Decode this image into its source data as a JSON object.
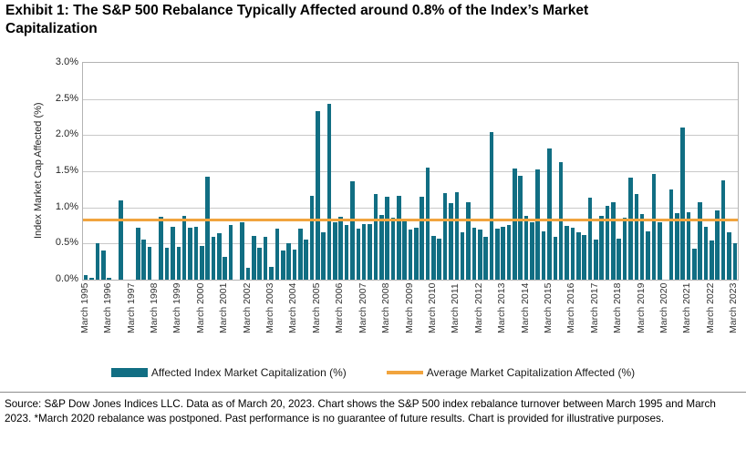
{
  "title": "Exhibit 1: The S&P 500 Rebalance Typically Affected around 0.8% of the Index’s Market Capitalization",
  "chart_data": {
    "type": "bar",
    "title": "Exhibit 1: The S&P 500 Rebalance Typically Affected around 0.8% of the Index’s Market Capitalization",
    "ylabel": "Index Market Cap Affected (%)",
    "ylim": [
      0,
      3.0
    ],
    "ytick_step": 0.5,
    "ytick_labels": [
      "0.0%",
      "0.5%",
      "1.0%",
      "1.5%",
      "2.0%",
      "2.5%",
      "3.0%"
    ],
    "grid": true,
    "legend_position": "bottom",
    "x_frequency": "quarterly",
    "x_range": [
      "March 1995",
      "March 2023"
    ],
    "x_tick_labels": [
      "March 1995",
      "March 1996",
      "March 1997",
      "March 1998",
      "March 1999",
      "March 2000",
      "March 2001",
      "March 2002",
      "March 2003",
      "March 2004",
      "March 2005",
      "March 2006",
      "March 2007",
      "March 2008",
      "March 2009",
      "March 2010",
      "March 2011",
      "March 2012",
      "March 2013",
      "March 2014",
      "March 2015",
      "March 2016",
      "March 2017",
      "March 2018",
      "March 2019",
      "March 2020",
      "March 2021",
      "March 2022",
      "March 2023"
    ],
    "x_ticks_every_n_bars": 4,
    "values": [
      0.06,
      0.03,
      0.5,
      0.4,
      0.03,
      0.0,
      1.1,
      0.0,
      0.0,
      0.72,
      0.55,
      0.45,
      0.0,
      0.87,
      0.44,
      0.73,
      0.46,
      0.88,
      0.72,
      0.73,
      0.47,
      1.43,
      0.59,
      0.64,
      0.31,
      0.76,
      0.0,
      0.8,
      0.16,
      0.61,
      0.44,
      0.59,
      0.18,
      0.71,
      0.4,
      0.51,
      0.41,
      0.7,
      0.56,
      1.16,
      2.33,
      0.65,
      2.43,
      0.79,
      0.87,
      0.76,
      1.36,
      0.71,
      0.77,
      0.77,
      1.19,
      0.89,
      1.15,
      0.86,
      1.16,
      0.85,
      0.69,
      0.72,
      1.15,
      1.55,
      0.61,
      0.57,
      1.2,
      1.06,
      1.21,
      0.65,
      1.07,
      0.72,
      0.69,
      0.59,
      2.04,
      0.7,
      0.73,
      0.76,
      1.54,
      1.44,
      0.88,
      0.8,
      1.52,
      0.67,
      1.82,
      0.59,
      1.63,
      0.75,
      0.72,
      0.66,
      0.62,
      1.14,
      0.56,
      0.88,
      1.02,
      1.07,
      0.57,
      0.86,
      1.41,
      1.19,
      0.91,
      0.67,
      1.46,
      0.8,
      0.0,
      1.25,
      0.92,
      2.11,
      0.93,
      0.43,
      1.07,
      0.73,
      0.54,
      0.96,
      1.38,
      0.65,
      0.5
    ],
    "average_line_value": 0.83,
    "bar_color": "#116e83",
    "average_line_color": "#f1a43e"
  },
  "legend": {
    "bars_label": "Affected Index Market Capitalization (%)",
    "average_label": "Average Market Capitalization Affected (%)"
  },
  "footer": {
    "text": "Source: S&P Dow Jones Indices LLC. Data as of March 20, 2023. Chart shows the S&P 500 index rebalance turnover between March 1995 and March 2023. *March 2020 rebalance was postponed. Past performance is no guarantee of future results. Chart is provided for illustrative purposes."
  }
}
